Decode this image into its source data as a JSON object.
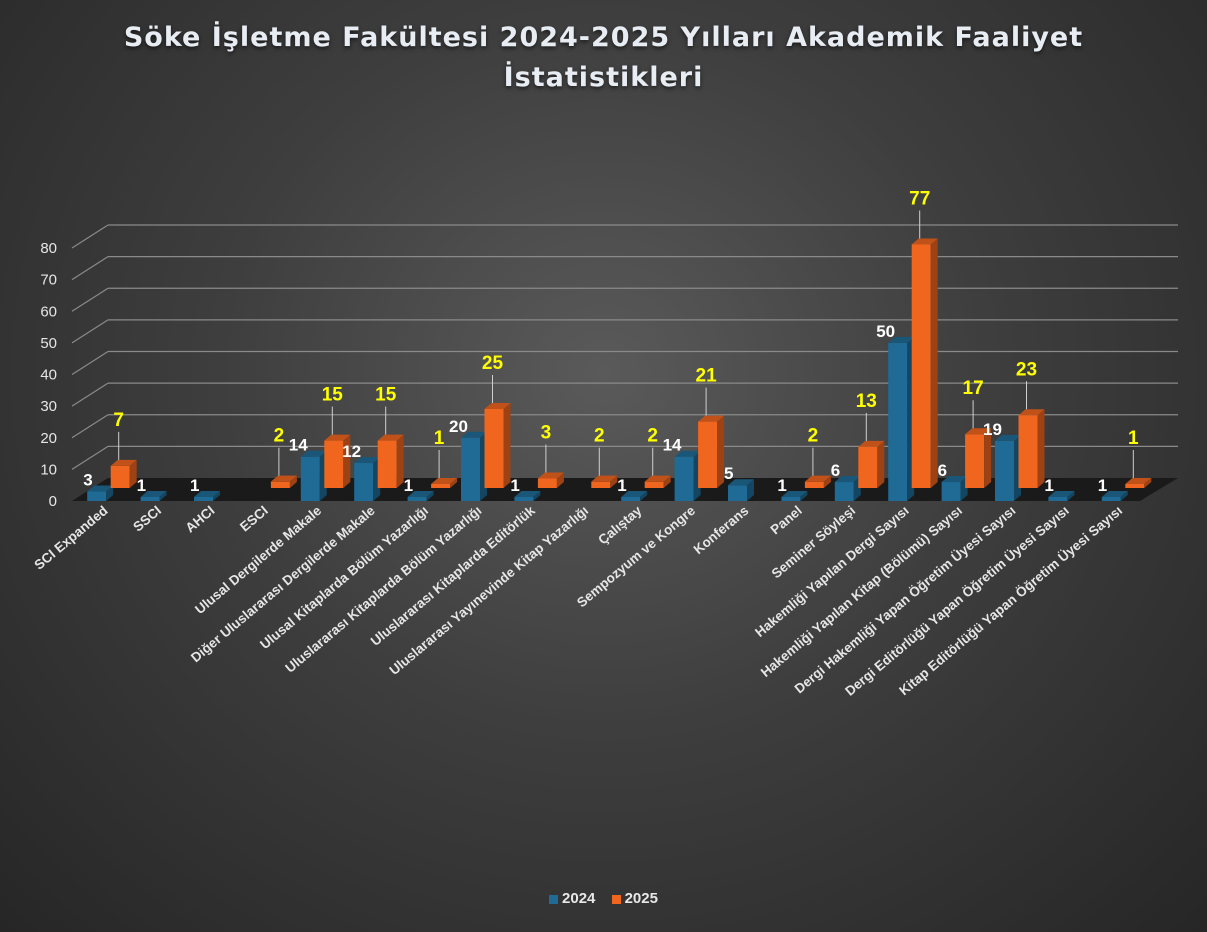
{
  "chart_data": {
    "type": "bar",
    "title": "Söke İşletme Fakültesi 2024-2025 Yılları Akademik Faaliyet İstatistikleri",
    "categories": [
      "SCI Expanded",
      "SSCI",
      "AHCI",
      "ESCI",
      "Ulusal Dergilerde Makale",
      "Diğer Uluslararası Dergilerde Makale",
      "Ulusal Kitaplarda Bölüm Yazarlığı",
      "Uluslararası Kitaplarda Bölüm Yazarlığı",
      "Uluslararası Kitaplarda Editörlük",
      "Uluslararası Yayınevinde Kitap Yazarlığı",
      "Çalıştay",
      "Sempozyum ve Kongre",
      "Konferans",
      "Panel",
      "Seminer Söyleşi",
      "Hakemliği Yapılan Dergi Sayısı",
      "Hakemliği Yapılan Kitap (Bölümü) Sayısı",
      "Dergi Hakemliği Yapan Öğretim Üyesi Sayısı",
      "Dergi Editörlüğü Yapan Öğretim Üyesi Sayısı",
      "Kitap Editörlüğü Yapan Öğretim Üyesi Sayısı"
    ],
    "series": [
      {
        "name": "2024",
        "color": "#1f6b95",
        "values": [
          3,
          1,
          1,
          0,
          14,
          12,
          1,
          20,
          1,
          0,
          1,
          14,
          5,
          1,
          6,
          50,
          6,
          19,
          1,
          1
        ]
      },
      {
        "name": "2025",
        "color": "#f0661f",
        "values": [
          7,
          0,
          0,
          2,
          15,
          15,
          1,
          25,
          3,
          2,
          2,
          21,
          0,
          2,
          13,
          77,
          17,
          23,
          0,
          1
        ]
      }
    ],
    "label_colors": {
      "2024": "#ffffff",
      "2025": "#ffff00"
    },
    "ylim": [
      0,
      80
    ],
    "yticks": [
      "0",
      "10",
      "20",
      "30",
      "40",
      "50",
      "60",
      "70",
      "80"
    ],
    "grid": true,
    "legend_position": "bottom"
  }
}
